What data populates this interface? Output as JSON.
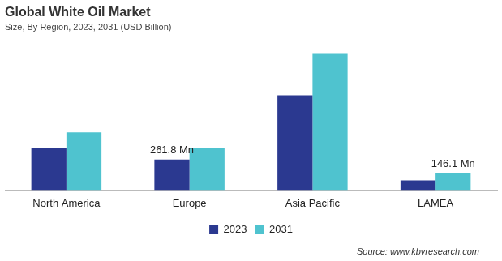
{
  "chart_data": {
    "type": "bar",
    "title": "Global White Oil Market",
    "subtitle": "Size, By Region, 2023, 2031 (USD Billion)",
    "categories": [
      "North America",
      "Europe",
      "Asia Pacific",
      "LAMEA"
    ],
    "series": [
      {
        "name": "2023",
        "color": "#2b3990",
        "values": [
          358,
          261.8,
          800,
          88
        ],
        "value_labels": [
          null,
          "261.8 Mn",
          null,
          null
        ]
      },
      {
        "name": "2031",
        "color": "#4fc3cf",
        "values": [
          490,
          358,
          1145,
          146.1
        ],
        "value_labels": [
          null,
          null,
          null,
          "146.1 Mn"
        ]
      }
    ],
    "source": "Source: www.kbvresearch.com",
    "legend": "bottom",
    "grid": false,
    "tick_labels": "x"
  }
}
